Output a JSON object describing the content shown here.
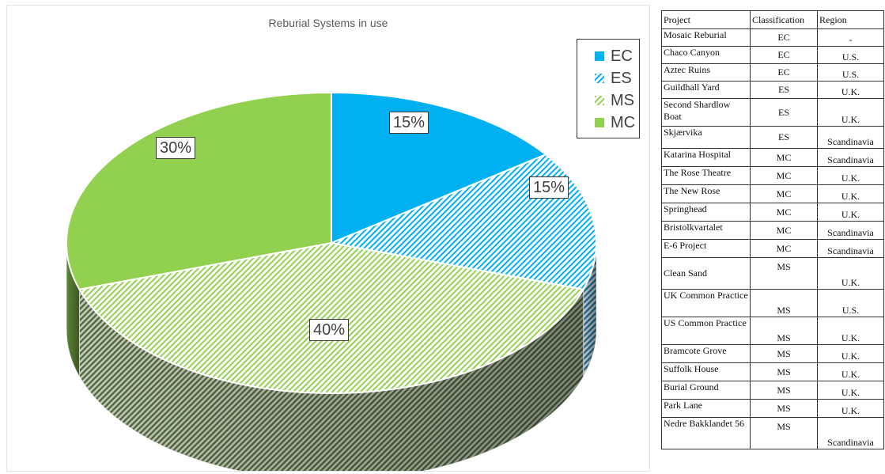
{
  "chart_data": {
    "type": "pie",
    "title": "Reburial Systems in use",
    "slices": [
      {
        "name": "EC",
        "value": 15,
        "label": "15%",
        "color": "#00b0f0",
        "pattern": "solid"
      },
      {
        "name": "ES",
        "value": 15,
        "label": "15%",
        "color": "#00b0f0",
        "pattern": "hatch"
      },
      {
        "name": "MS",
        "value": 40,
        "label": "40%",
        "color": "#92d050",
        "pattern": "hatch"
      },
      {
        "name": "MC",
        "value": 30,
        "label": "30%",
        "color": "#92d050",
        "pattern": "solid"
      }
    ],
    "legend_position": "top-right",
    "style": "3d-exploded-perspective"
  },
  "table": {
    "headers": [
      "Project",
      "Classification",
      "Region"
    ],
    "rows": [
      {
        "project": "Mosaic Reburial",
        "classification": "EC",
        "region": "-"
      },
      {
        "project": "Chaco Canyon",
        "classification": "EC",
        "region": "U.S."
      },
      {
        "project": "Aztec Ruins",
        "classification": "EC",
        "region": "U.S."
      },
      {
        "project": "Guildhall Yard",
        "classification": "ES",
        "region": "U.K."
      },
      {
        "project": "Second Shardlow Boat",
        "classification": "ES",
        "region": "U.K."
      },
      {
        "project": "Skjærvika",
        "classification": "ES",
        "region": "Scandinavia"
      },
      {
        "project": "Katarina Hospital",
        "classification": "MC",
        "region": "Scandinavia"
      },
      {
        "project": "The Rose Theatre",
        "classification": "MC",
        "region": "U.K."
      },
      {
        "project": "The New Rose",
        "classification": "MC",
        "region": "U.K."
      },
      {
        "project": "Springhead",
        "classification": "MC",
        "region": "U.K."
      },
      {
        "project": "Bristolkvartalet",
        "classification": "MC",
        "region": "Scandinavia"
      },
      {
        "project": "E-6 Project",
        "classification": "MC",
        "region": "Scandinavia"
      },
      {
        "project": "Clean Sand",
        "classification": "MS",
        "region": "U.K."
      },
      {
        "project": "UK Common Practice",
        "classification": "MS",
        "region": "U.S."
      },
      {
        "project": "US Common Practice",
        "classification": "MS",
        "region": "U.K."
      },
      {
        "project": "Bramcote Grove",
        "classification": "MS",
        "region": "U.K."
      },
      {
        "project": "Suffolk House",
        "classification": "MS",
        "region": "U.K."
      },
      {
        "project": "Burial Ground",
        "classification": "MS",
        "region": "U.K."
      },
      {
        "project": "Park Lane",
        "classification": "MS",
        "region": "U.K."
      },
      {
        "project": "Nedre Bakklandet 56",
        "classification": "MS",
        "region": "Scandinavia"
      }
    ]
  }
}
